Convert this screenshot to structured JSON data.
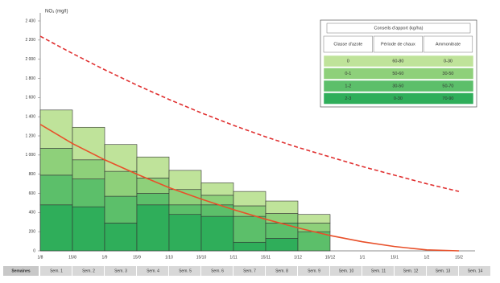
{
  "chart_data": {
    "type": "bar",
    "stacked": true,
    "y_axis_label": "NO₃ (mg/l)",
    "categories": [
      "1/8",
      "15/8",
      "1/9",
      "15/9",
      "1/10",
      "15/10",
      "1/11",
      "15/11",
      "1/12",
      "15/12",
      "1/1",
      "15/1",
      "1/2",
      "15/2"
    ],
    "ylim": [
      0,
      2400
    ],
    "yticks": [
      0,
      200,
      400,
      600,
      800,
      {
        "value": 1000,
        "label": "1 000"
      },
      {
        "value": 1200,
        "label": "1 200"
      },
      {
        "value": 1400,
        "label": "1 400"
      },
      {
        "value": 1600,
        "label": "1 600"
      },
      {
        "value": 1800,
        "label": "1 800"
      },
      {
        "value": 2000,
        "label": "2 000"
      },
      {
        "value": 2200,
        "label": "2 200"
      },
      {
        "value": 2400,
        "label": "2 400"
      }
    ],
    "series": [
      {
        "color": "#2fae5a",
        "values": [
          480,
          460,
          290,
          480,
          380,
          360,
          90,
          130,
          0,
          null,
          null,
          null,
          null,
          null
        ]
      },
      {
        "color": "#5cbf6a",
        "values": [
          310,
          290,
          280,
          120,
          100,
          120,
          270,
          160,
          200,
          null,
          null,
          null,
          null,
          null
        ]
      },
      {
        "color": "#8ed07a",
        "values": [
          280,
          200,
          260,
          160,
          160,
          100,
          110,
          100,
          90,
          null,
          null,
          null,
          null,
          null
        ]
      },
      {
        "color": "#bfe39a",
        "values": [
          400,
          340,
          280,
          220,
          200,
          130,
          150,
          130,
          90,
          null,
          null,
          null,
          null,
          null
        ]
      }
    ],
    "lines": [
      {
        "color": "#e8502a",
        "style": "solid",
        "values": [
          1320,
          1120,
          950,
          800,
          660,
          540,
          430,
          330,
          240,
          160,
          95,
          45,
          10,
          0
        ]
      },
      {
        "color": "#e03030",
        "style": "dashed",
        "values": [
          2240,
          2060,
          1890,
          1730,
          1580,
          1440,
          1310,
          1190,
          1080,
          980,
          880,
          790,
          700,
          620
        ]
      }
    ]
  },
  "table": {
    "title": "Conseils d'apport (kg/ha)",
    "header": [
      "Classe d'azote",
      "Période de chaux",
      "Ammonitrate"
    ],
    "rows": [
      [
        "0",
        "60-80",
        "0-30"
      ],
      [
        "0-1",
        "50-60",
        "30-50"
      ],
      [
        "1-2",
        "30-50",
        "50-70"
      ],
      [
        "2-3",
        "0-30",
        "70-90"
      ]
    ]
  },
  "footer": {
    "label": "Semaines",
    "cells": [
      "Sem. 1",
      "Sem. 2",
      "Sem. 3",
      "Sem. 4",
      "Sem. 5",
      "Sem. 6",
      "Sem. 7",
      "Sem. 8",
      "Sem. 9",
      "Sem. 10",
      "Sem. 11",
      "Sem. 12",
      "Sem. 13",
      "Sem. 14"
    ]
  }
}
